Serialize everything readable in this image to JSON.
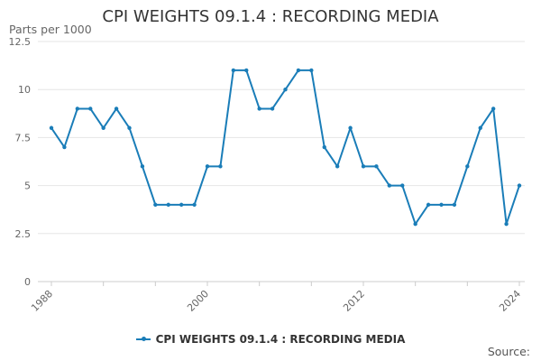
{
  "chart_data": {
    "type": "line",
    "title": "CPI WEIGHTS 09.1.4 : RECORDING MEDIA",
    "ylabel": "Parts per 1000",
    "xlabel": "",
    "ylim": [
      0,
      12.5
    ],
    "yticks": [
      "0",
      "2.5",
      "5",
      "7.5",
      "10",
      "12.5"
    ],
    "xticks": [
      "1988",
      "2000",
      "2012",
      "2024"
    ],
    "grid": true,
    "legend_position": "bottom",
    "color": "#1a7db8",
    "series": [
      {
        "name": "CPI WEIGHTS 09.1.4 : RECORDING MEDIA",
        "x": [
          1988,
          1989,
          1990,
          1991,
          1992,
          1993,
          1994,
          1995,
          1996,
          1997,
          1998,
          1999,
          2000,
          2001,
          2002,
          2003,
          2004,
          2005,
          2006,
          2007,
          2008,
          2009,
          2010,
          2011,
          2012,
          2013,
          2014,
          2015,
          2016,
          2017,
          2018,
          2019,
          2020,
          2021,
          2022,
          2023,
          2024
        ],
        "values": [
          8,
          7,
          9,
          9,
          8,
          9,
          8,
          6,
          4,
          4,
          4,
          4,
          6,
          6,
          11,
          11,
          9,
          9,
          10,
          11,
          11,
          7,
          6,
          8,
          6,
          6,
          5,
          5,
          3,
          4,
          4,
          4,
          6,
          8,
          9,
          3,
          5
        ]
      }
    ]
  },
  "source_label": "Source:"
}
